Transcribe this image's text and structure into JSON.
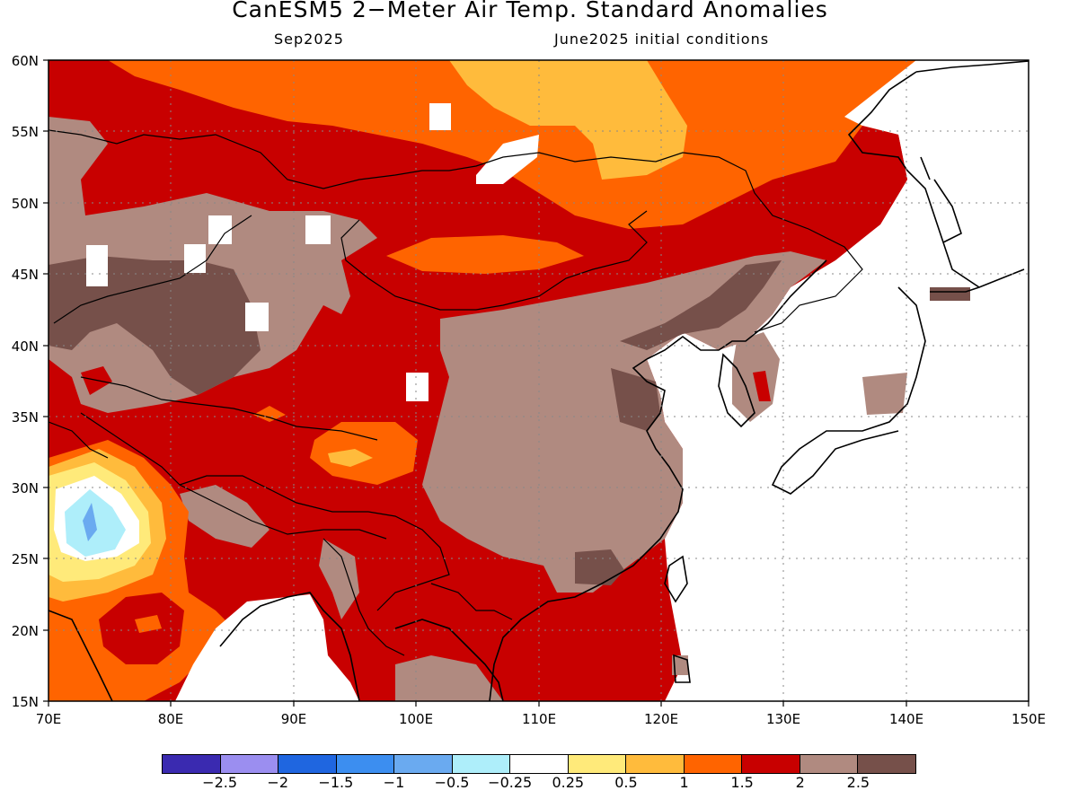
{
  "title": "CanESM5 2−Meter Air Temp. Standard Anomalies",
  "subtitle_left": "Sep2025",
  "subtitle_right": "June2025 initial conditions",
  "axes": {
    "lat_labels": [
      "60N",
      "55N",
      "50N",
      "45N",
      "40N",
      "35N",
      "30N",
      "25N",
      "20N",
      "15N"
    ],
    "lon_labels": [
      "70E",
      "80E",
      "90E",
      "100E",
      "110E",
      "120E",
      "130E",
      "140E",
      "150E"
    ],
    "lat_range": [
      15,
      60
    ],
    "lon_range": [
      70,
      150
    ],
    "grid": "dotted"
  },
  "colorbar": {
    "colors": [
      "#3a2ab0",
      "#9b8ef0",
      "#1f66e0",
      "#3c8ef0",
      "#6aaaf0",
      "#aeeefa",
      "#ffffff",
      "#ffea7a",
      "#ffbb3c",
      "#ff6400",
      "#c80000",
      "#b08a80",
      "#76504a"
    ],
    "labels": [
      "−2.5",
      "−2",
      "−1.5",
      "−1",
      "−0.5",
      "−0.25",
      "0.25",
      "0.5",
      "1",
      "1.5",
      "2",
      "2.5"
    ]
  }
}
